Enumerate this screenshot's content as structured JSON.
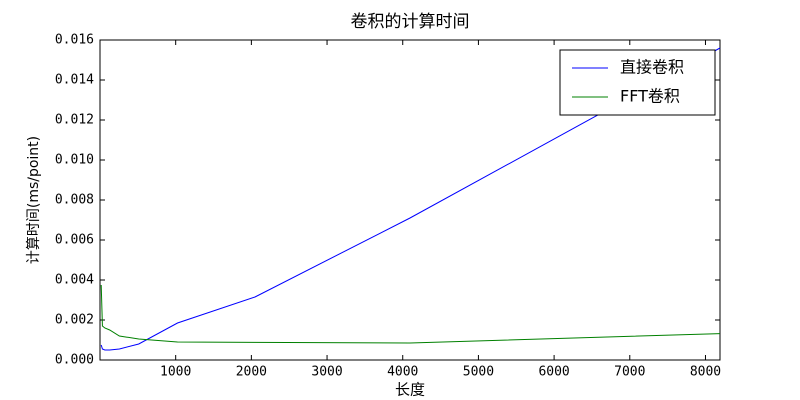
{
  "chart_data": {
    "type": "line",
    "title": "卷积的计算时间",
    "x_label": "长度",
    "y_label": "计算时间(ms/point)",
    "x": [
      16,
      32,
      64,
      128,
      256,
      512,
      1024,
      2048,
      4096,
      8192
    ],
    "series": [
      {
        "name": "直接卷积",
        "color": "#0000ff",
        "values": [
          0.00075,
          0.00055,
          0.0005,
          0.0005,
          0.00055,
          0.0008,
          0.00185,
          0.00315,
          0.0071,
          0.0156
        ]
      },
      {
        "name": "FFT卷积",
        "color": "#008000",
        "values": [
          0.00375,
          0.0017,
          0.0016,
          0.0015,
          0.0012,
          0.00105,
          0.0009,
          0.00088,
          0.00085,
          0.00132
        ]
      }
    ],
    "xlim": [
      0,
      8192
    ],
    "xticks": [
      1000,
      2000,
      3000,
      4000,
      5000,
      6000,
      7000,
      8000
    ],
    "ylim": [
      0,
      0.016
    ],
    "yticks": [
      {
        "value": 0,
        "label": "0.000"
      },
      {
        "value": 0.002,
        "label": "0.002"
      },
      {
        "value": 0.004,
        "label": "0.004"
      },
      {
        "value": 0.006,
        "label": "0.006"
      },
      {
        "value": 0.008,
        "label": "0.008"
      },
      {
        "value": 0.01,
        "label": "0.010"
      },
      {
        "value": 0.012,
        "label": "0.012"
      },
      {
        "value": 0.014,
        "label": "0.014"
      },
      {
        "value": 0.016,
        "label": "0.016"
      }
    ],
    "legend": "upper right",
    "grid": false
  }
}
